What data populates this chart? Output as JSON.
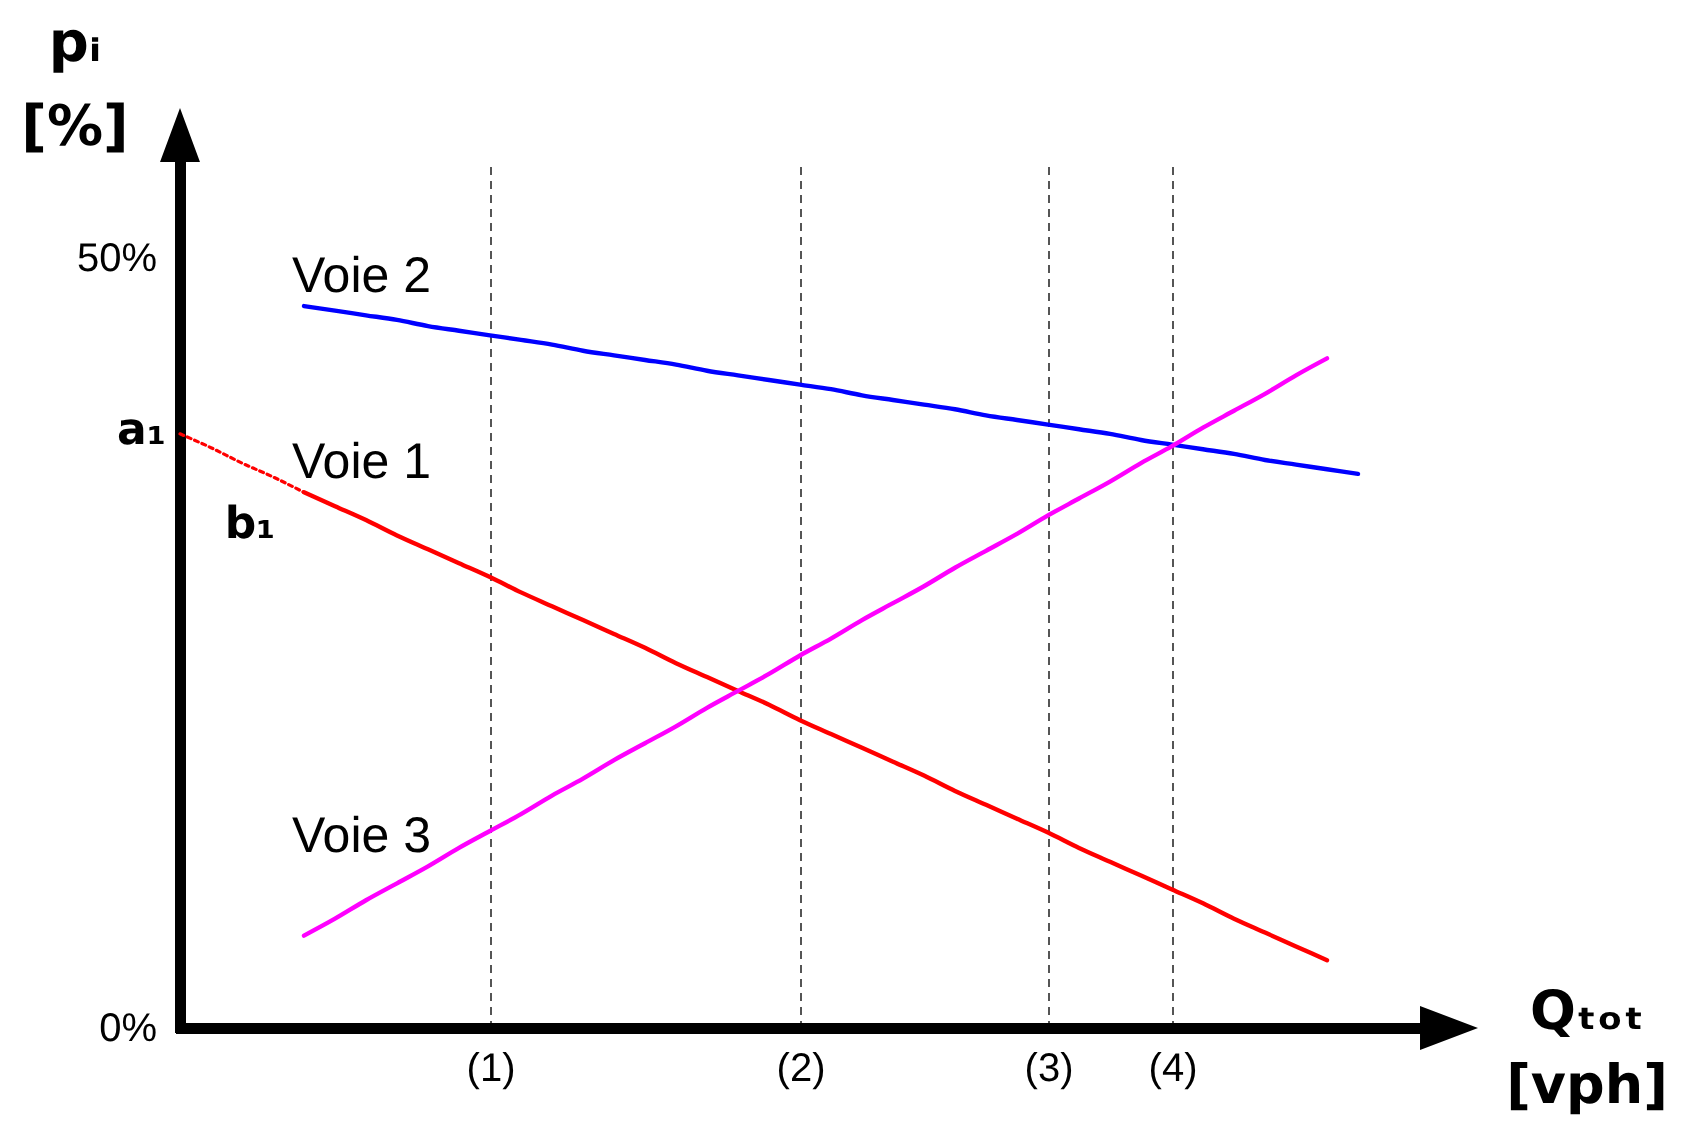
{
  "chart_data": {
    "type": "line",
    "xlabel": "Qₜₒₜ\n[vph]",
    "ylabel": "pᵢ\n[%]",
    "grid": "x",
    "categories": [
      null,
      null,
      null,
      null,
      null,
      null,
      null,
      null,
      null,
      null,
      "(1)",
      null,
      null,
      null,
      null,
      null,
      null,
      null,
      null,
      null,
      "(2)",
      null,
      null,
      null,
      null,
      null,
      null,
      null,
      "(3)",
      null,
      null,
      null,
      "(4)",
      null,
      null,
      null,
      null,
      null,
      null,
      null,
      null
    ],
    "ylim": [
      0,
      56
    ],
    "yticks": [
      {
        "value": 0,
        "label": "0%"
      },
      {
        "value": 50,
        "label": "50%"
      }
    ],
    "series": [
      {
        "name": "Voie 1",
        "color": "#ff0000",
        "values": [
          null,
          null,
          null,
          null,
          34.8,
          33.9,
          33.0,
          32.0,
          31.1,
          30.2,
          29.3,
          28.3,
          27.4,
          26.5,
          25.6,
          24.7,
          23.7,
          22.8,
          21.9,
          21.0,
          20.0,
          19.1,
          18.2,
          17.3,
          16.4,
          15.4,
          14.5,
          13.6,
          12.7,
          11.7,
          10.8,
          9.9,
          9.0,
          8.1,
          7.1,
          6.2,
          5.3,
          4.4,
          null,
          null,
          null
        ]
      },
      {
        "name": "Voie 2",
        "color": "#0000ff",
        "values": [
          null,
          null,
          null,
          null,
          46.9,
          46.6,
          46.3,
          46.0,
          45.6,
          45.3,
          45.0,
          44.7,
          44.4,
          44.0,
          43.7,
          43.4,
          43.1,
          42.7,
          42.4,
          42.1,
          41.8,
          41.5,
          41.1,
          40.8,
          40.5,
          40.2,
          39.8,
          39.5,
          39.2,
          38.9,
          38.6,
          38.2,
          37.9,
          37.6,
          37.3,
          36.9,
          36.6,
          36.3,
          36.0,
          null,
          null
        ]
      },
      {
        "name": "Voie 3",
        "color": "#ff00ff",
        "values": [
          null,
          null,
          null,
          null,
          6.0,
          7.1,
          8.3,
          9.4,
          10.5,
          11.7,
          12.8,
          13.9,
          15.1,
          16.2,
          17.4,
          18.5,
          19.6,
          20.8,
          21.9,
          23.0,
          24.2,
          25.3,
          26.5,
          27.6,
          28.7,
          29.9,
          31.0,
          32.1,
          33.3,
          34.4,
          35.5,
          36.7,
          37.8,
          39.0,
          40.1,
          41.2,
          42.4,
          43.5,
          null,
          null,
          null
        ]
      },
      {
        "color": "#ff0000",
        "line_style": "dotted",
        "values": [
          38.6,
          37.7,
          36.7,
          35.8,
          34.8,
          null,
          null,
          null,
          null,
          null,
          null,
          null,
          null,
          null,
          null,
          null,
          null,
          null,
          null,
          null,
          null,
          null,
          null,
          null,
          null,
          null,
          null,
          null,
          null,
          null,
          null,
          null,
          null,
          null,
          null,
          null,
          null,
          null,
          null,
          null,
          null
        ]
      }
    ],
    "annotations": [
      "a₁",
      "b₁"
    ]
  }
}
